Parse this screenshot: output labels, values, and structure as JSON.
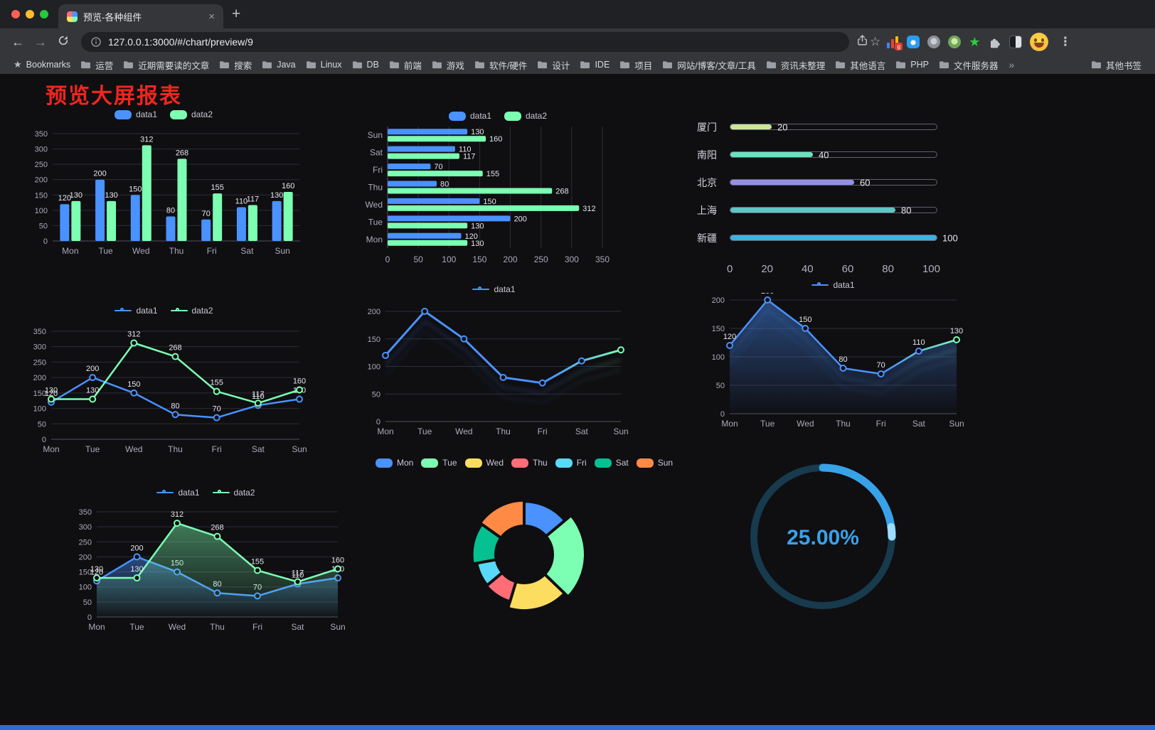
{
  "browser": {
    "tab_title": "预览-各种组件",
    "url": "127.0.0.1:3000/#/chart/preview/9",
    "icons": {
      "back": "←",
      "forward": "→",
      "close_tab": "×",
      "new_tab": "+",
      "bookmark_star": "☆",
      "menu": "⋮",
      "overflow": "»",
      "bookmarks_star": "★",
      "green_star_ext": "★",
      "extension_badge": "g"
    },
    "bookmarks_root_label": "Bookmarks",
    "bookmarks": [
      "运营",
      "近期需要读的文章",
      "搜索",
      "Java",
      "Linux",
      "DB",
      "前端",
      "游戏",
      "软件/硬件",
      "设计",
      "IDE",
      "项目",
      "网站/博客/文章/工具",
      "资讯未整理",
      "其他语言",
      "PHP",
      "文件服务器"
    ],
    "other_bookmarks_label": "其他书签"
  },
  "page": {
    "title": "预览大屏报表",
    "title_color": "#f0261d",
    "background": "#0f0e11",
    "accent_bar_color": "#2b6bd9"
  },
  "chart_data": [
    {
      "id": "grouped-bar",
      "type": "bar",
      "categories": [
        "Mon",
        "Tue",
        "Wed",
        "Thu",
        "Fri",
        "Sat",
        "Sun"
      ],
      "series": [
        {
          "name": "data1",
          "color": "#4992ff",
          "values": [
            120,
            200,
            150,
            80,
            70,
            110,
            130
          ]
        },
        {
          "name": "data2",
          "color": "#7cffb2",
          "values": [
            130,
            130,
            312,
            268,
            155,
            117,
            160
          ]
        }
      ],
      "ylim": [
        0,
        350
      ],
      "yticks": [
        0,
        50,
        100,
        150,
        200,
        250,
        300,
        350
      ],
      "legend": [
        "data1",
        "data2"
      ],
      "legend_position": "top",
      "value_labels": true,
      "grid": true
    },
    {
      "id": "horizontal-bar",
      "type": "bar",
      "orientation": "horizontal",
      "categories": [
        "Mon",
        "Tue",
        "Wed",
        "Thu",
        "Fri",
        "Sat",
        "Sun"
      ],
      "series": [
        {
          "name": "data1",
          "color": "#4992ff",
          "values": [
            120,
            200,
            150,
            80,
            70,
            110,
            130
          ]
        },
        {
          "name": "data2",
          "color": "#7cffb2",
          "values": [
            130,
            130,
            312,
            268,
            155,
            117,
            160
          ]
        }
      ],
      "xlim": [
        0,
        350
      ],
      "xticks": [
        0,
        50,
        100,
        150,
        200,
        250,
        300,
        350
      ],
      "legend": [
        "data1",
        "data2"
      ],
      "legend_position": "top",
      "value_labels": true,
      "grid": true
    },
    {
      "id": "city-progress",
      "type": "bar",
      "orientation": "horizontal-progress",
      "items": [
        {
          "label": "厦门",
          "value": 20,
          "color": "#cbe59b"
        },
        {
          "label": "南阳",
          "value": 40,
          "color": "#69e2bd"
        },
        {
          "label": "北京",
          "value": 60,
          "color": "#938fe8"
        },
        {
          "label": "上海",
          "value": 80,
          "color": "#5fc5c7"
        },
        {
          "label": "新疆",
          "value": 100,
          "color": "#3fb1e3"
        }
      ],
      "xlim": [
        0,
        100
      ],
      "xticks": [
        0,
        20,
        40,
        60,
        80,
        100
      ]
    },
    {
      "id": "line-two-series",
      "type": "line",
      "categories": [
        "Mon",
        "Tue",
        "Wed",
        "Thu",
        "Fri",
        "Sat",
        "Sun"
      ],
      "series": [
        {
          "name": "data1",
          "color": "#4992ff",
          "values": [
            120,
            200,
            150,
            80,
            70,
            110,
            130
          ]
        },
        {
          "name": "data2",
          "color": "#7cffb2",
          "values": [
            130,
            130,
            312,
            268,
            155,
            117,
            160
          ]
        }
      ],
      "ylim": [
        0,
        350
      ],
      "yticks": [
        0,
        50,
        100,
        150,
        200,
        250,
        300,
        350
      ],
      "legend": [
        "data1",
        "data2"
      ],
      "legend_position": "top",
      "value_labels": true,
      "grid": true
    },
    {
      "id": "gradient-line",
      "type": "line",
      "categories": [
        "Mon",
        "Tue",
        "Wed",
        "Thu",
        "Fri",
        "Sat",
        "Sun"
      ],
      "series": [
        {
          "name": "data1",
          "color": "#4992ff",
          "color_end": "#7cffb2",
          "values": [
            120,
            200,
            150,
            80,
            70,
            110,
            130
          ]
        }
      ],
      "ylim": [
        0,
        200
      ],
      "yticks": [
        0,
        50,
        100,
        150,
        200
      ],
      "legend": [
        "data1"
      ],
      "legend_position": "top",
      "value_labels": false,
      "grid": true
    },
    {
      "id": "area-line",
      "type": "area",
      "categories": [
        "Mon",
        "Tue",
        "Wed",
        "Thu",
        "Fri",
        "Sat",
        "Sun"
      ],
      "series": [
        {
          "name": "data1",
          "color": "#4992ff",
          "color_end": "#7cffb2",
          "values": [
            120,
            200,
            150,
            80,
            70,
            110,
            130
          ]
        }
      ],
      "ylim": [
        0,
        200
      ],
      "yticks": [
        0,
        50,
        100,
        150,
        200
      ],
      "legend": [
        "data1"
      ],
      "legend_position": "top",
      "value_labels": true,
      "grid": true
    },
    {
      "id": "two-series-area",
      "type": "area",
      "categories": [
        "Mon",
        "Tue",
        "Wed",
        "Thu",
        "Fri",
        "Sat",
        "Sun"
      ],
      "series": [
        {
          "name": "data1",
          "color": "#4992ff",
          "values": [
            120,
            200,
            150,
            80,
            70,
            110,
            130
          ]
        },
        {
          "name": "data2",
          "color": "#7cffb2",
          "values": [
            130,
            130,
            312,
            268,
            155,
            117,
            160
          ]
        }
      ],
      "ylim": [
        0,
        350
      ],
      "yticks": [
        0,
        50,
        100,
        150,
        200,
        250,
        300,
        350
      ],
      "legend": [
        "data1",
        "data2"
      ],
      "legend_position": "top",
      "value_labels": true,
      "grid": true
    },
    {
      "id": "rose-donut",
      "type": "pie",
      "rose": true,
      "categories": [
        "Mon",
        "Tue",
        "Wed",
        "Thu",
        "Fri",
        "Sat",
        "Sun"
      ],
      "values": [
        120,
        200,
        150,
        80,
        70,
        110,
        130
      ],
      "colors": [
        "#4992ff",
        "#7cffb2",
        "#fddd60",
        "#ff6e76",
        "#58d9f9",
        "#05c091",
        "#ff8a45"
      ],
      "legend_position": "top"
    },
    {
      "id": "ring-progress",
      "type": "gauge",
      "value": 25,
      "label": "25.00%",
      "color": "#38a2e8",
      "cap_color": "#9bdcff",
      "track_color": "#173a4c"
    }
  ]
}
